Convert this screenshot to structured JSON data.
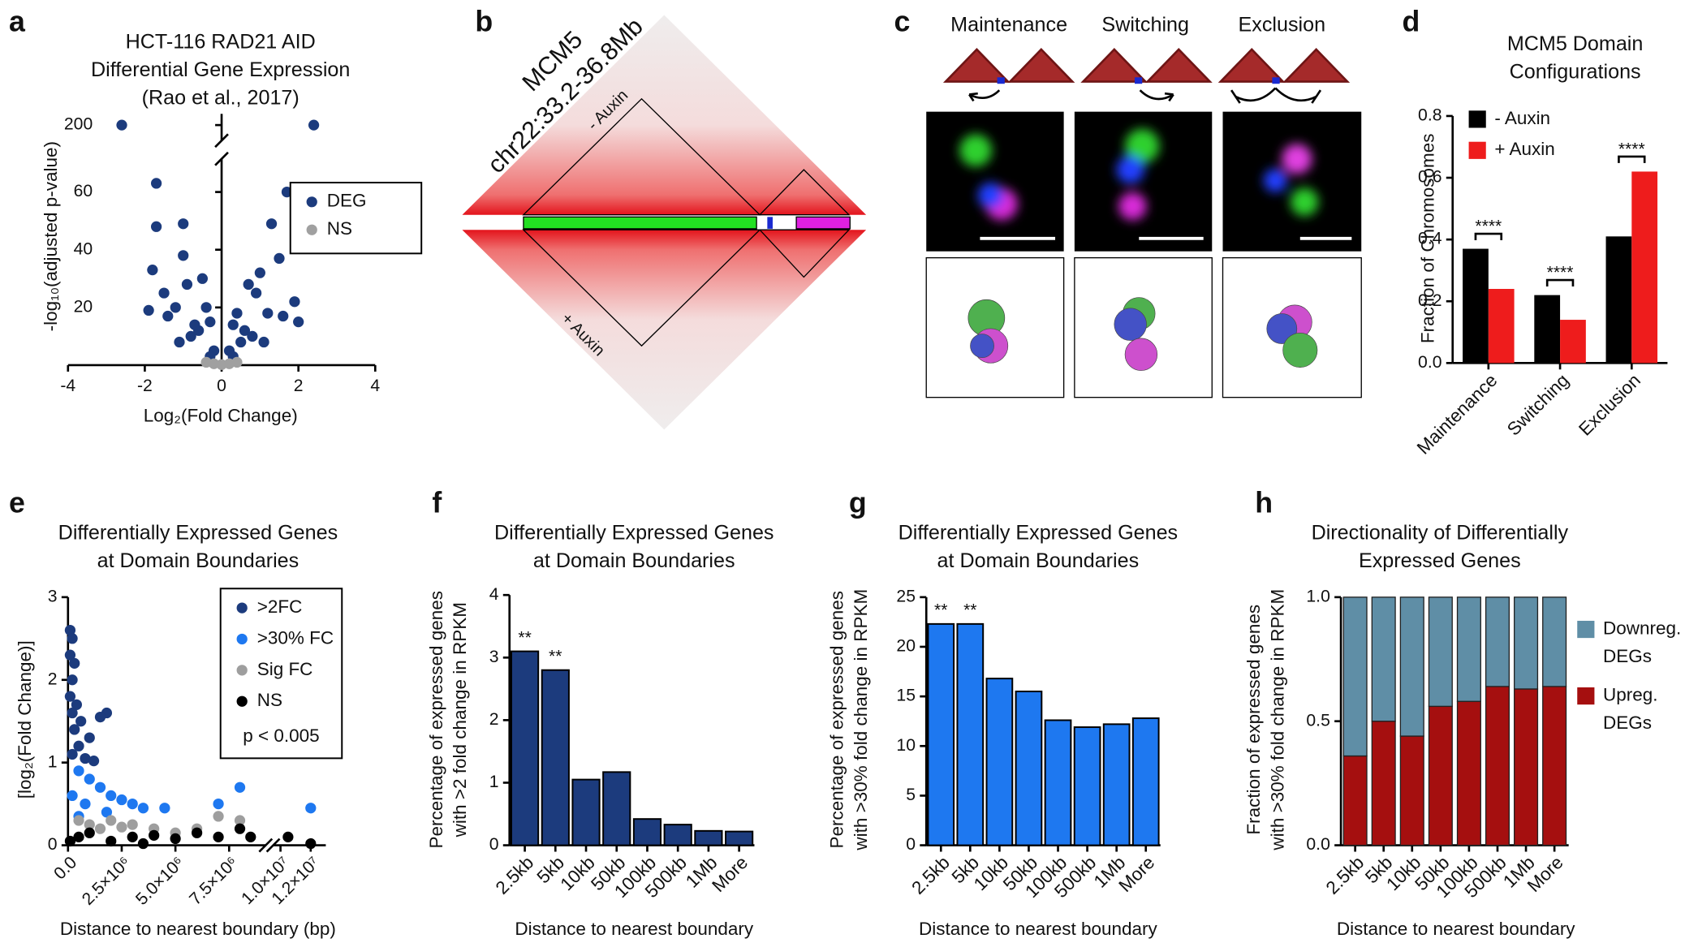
{
  "chart_data": [
    {
      "type": "scatter",
      "panel": "a",
      "title": [
        "HCT-116 RAD21 AID",
        "Differential Gene Expression",
        "(Rao et al., 2017)"
      ],
      "x_label": "Log₂(Fold Change)",
      "y_label": "-log₁₀(adjusted p-value)",
      "xlim": [
        -4,
        4
      ],
      "xticks": [
        -4,
        -2,
        0,
        2,
        4
      ],
      "ylim": [
        0,
        205
      ],
      "y_break": [
        70,
        195
      ],
      "yticks": [
        20,
        40,
        60,
        200
      ],
      "legend": "upper right",
      "series": [
        {
          "name": "DEG",
          "color": "#1c3b7d",
          "x": [
            -2.6,
            2.4,
            -1.7,
            1.7,
            -1.7,
            -1.0,
            1.3,
            -1.8,
            -1.0,
            1.5,
            1.0,
            -0.5,
            0.7,
            -1.5,
            1.9,
            -1.2,
            1.2,
            -0.3,
            0.3,
            -0.8,
            0.8,
            -0.2,
            0.2,
            -1.4,
            1.6,
            2.0,
            -1.9,
            0.5,
            -0.6,
            -0.9,
            0.9,
            -0.4,
            0.4,
            -0.7,
            0.6,
            -1.1,
            1.1,
            -0.3,
            0.3
          ],
          "values": [
            200,
            200,
            63,
            60,
            48,
            49,
            49,
            33,
            38,
            37,
            32,
            30,
            28,
            25,
            22,
            20,
            18,
            15,
            14,
            10,
            10,
            5,
            5,
            17,
            17,
            15,
            19,
            8,
            12,
            28,
            25,
            20,
            18,
            14,
            12,
            8,
            8,
            3,
            3
          ]
        },
        {
          "name": "NS",
          "color": "#a0a0a0",
          "x": [
            -0.4,
            -0.2,
            0,
            0.2,
            0.4
          ],
          "values": [
            1,
            0.5,
            0.2,
            0.5,
            1
          ]
        }
      ]
    },
    {
      "type": "hic-map",
      "panel": "b",
      "title": [
        "MCM5",
        "chr22:33.2-36.8Mb"
      ],
      "labels": [
        "- Auxin",
        "+ Auxin"
      ]
    },
    {
      "type": "microscopy",
      "panel": "c",
      "categories": [
        "Maintenance",
        "Switching",
        "Exclusion"
      ]
    },
    {
      "type": "bar",
      "panel": "d",
      "title": [
        "MCM5 Domain",
        "Configurations"
      ],
      "y_label": "Fraction of Chromosomes",
      "categories": [
        "Maintenance",
        "Switching",
        "Exclusion"
      ],
      "ylim": [
        0,
        0.8
      ],
      "yticks": [
        {
          "value": 0,
          "label": "0.0"
        },
        0.2,
        0.4,
        0.6,
        0.8
      ],
      "legend": "upper left",
      "series": [
        {
          "name": "- Auxin",
          "color": "#000000",
          "values": [
            0.37,
            0.22,
            0.41
          ]
        },
        {
          "name": "+ Auxin",
          "color": "#ee1c1c",
          "values": [
            0.24,
            0.14,
            0.62
          ]
        }
      ],
      "significance": [
        "****",
        "****",
        "****"
      ]
    },
    {
      "type": "scatter",
      "panel": "e",
      "title": [
        "Differentially Expressed Genes",
        "at Domain Boundaries"
      ],
      "x_label": "Distance to nearest boundary (bp)",
      "y_label": "[log₂(Fold Change)]",
      "xlim": [
        0,
        13000000
      ],
      "x_break": [
        9000000,
        9800000
      ],
      "xticks": [
        {
          "value": 0,
          "label": "0.0"
        },
        {
          "value": 2500000,
          "label": "2.5×10⁶"
        },
        {
          "value": 5000000,
          "label": "5.0×10⁶"
        },
        {
          "value": 7500000,
          "label": "7.5×10⁶"
        },
        {
          "value": 10000000,
          "label": "1.0×10⁷"
        },
        {
          "value": 12000000,
          "label": "1.2×10⁷"
        }
      ],
      "ylim": [
        0,
        3
      ],
      "yticks": [
        0,
        1,
        2,
        3
      ],
      "legend": "upper right",
      "note": "p < 0.005",
      "series": [
        {
          "name": ">2FC",
          "color": "#1c3b7d",
          "x": [
            100000,
            200000,
            100000,
            300000,
            200000,
            100000,
            400000,
            200000,
            1800000,
            1500000,
            600000,
            300000,
            1000000,
            500000,
            200000,
            800000,
            1200000
          ],
          "values": [
            2.6,
            2.5,
            2.3,
            2.2,
            2.0,
            1.8,
            1.7,
            1.6,
            1.6,
            1.55,
            1.5,
            1.4,
            1.3,
            1.2,
            1.1,
            1.05,
            1.02
          ]
        },
        {
          "name": ">30% FC",
          "color": "#1e78f0",
          "x": [
            500000,
            1000000,
            1500000,
            2000000,
            2500000,
            3000000,
            3500000,
            4500000,
            7000000,
            8000000,
            12000000,
            200000,
            800000,
            1800000,
            500000
          ],
          "values": [
            0.9,
            0.8,
            0.7,
            0.6,
            0.55,
            0.5,
            0.45,
            0.45,
            0.5,
            0.7,
            0.45,
            0.6,
            0.5,
            0.4,
            0.35
          ]
        },
        {
          "name": "Sig FC",
          "color": "#9e9e9e",
          "x": [
            500000,
            1000000,
            2000000,
            3000000,
            4000000,
            5000000,
            6000000,
            7000000,
            8000000,
            1500000,
            2500000
          ],
          "values": [
            0.3,
            0.25,
            0.3,
            0.25,
            0.2,
            0.15,
            0.2,
            0.35,
            0.3,
            0.2,
            0.22
          ]
        },
        {
          "name": "NS",
          "color": "#000000",
          "x": [
            500000,
            1000000,
            2000000,
            3000000,
            4000000,
            5000000,
            6000000,
            7000000,
            8000000,
            8500000,
            10500000,
            12000000,
            100000,
            3500000
          ],
          "values": [
            0.1,
            0.15,
            0.05,
            0.1,
            0.12,
            0.08,
            0.15,
            0.1,
            0.2,
            0.1,
            0.1,
            0.02,
            0.05,
            0.02
          ]
        }
      ]
    },
    {
      "type": "bar",
      "panel": "f",
      "title": [
        "Differentially Expressed Genes",
        "at Domain Boundaries"
      ],
      "x_label": "Distance to nearest boundary",
      "y_label": [
        "Percentage of expressed genes",
        "with >2 fold change in RPKM"
      ],
      "categories": [
        "2.5kb",
        "5kb",
        "10kb",
        "50kb",
        "100kb",
        "500kb",
        "1Mb",
        "More"
      ],
      "color": "#1c3b7d",
      "values": [
        3.1,
        2.8,
        1.05,
        1.17,
        0.42,
        0.33,
        0.23,
        0.22
      ],
      "ylim": [
        0,
        4
      ],
      "yticks": [
        0,
        1,
        2,
        3,
        4
      ],
      "significance": [
        "**",
        "**",
        null,
        null,
        null,
        null,
        null,
        null
      ]
    },
    {
      "type": "bar",
      "panel": "g",
      "title": [
        "Differentially Expressed Genes",
        "at Domain Boundaries"
      ],
      "x_label": "Distance to nearest boundary",
      "y_label": [
        "Percentage of expressed genes",
        "with >30% fold change in RPKM"
      ],
      "categories": [
        "2.5kb",
        "5kb",
        "10kb",
        "50kb",
        "100kb",
        "500kb",
        "1Mb",
        "More"
      ],
      "color": "#1e78f0",
      "values": [
        22.3,
        22.3,
        16.8,
        15.5,
        12.6,
        11.9,
        12.2,
        12.8
      ],
      "ylim": [
        0,
        25
      ],
      "yticks": [
        0,
        5,
        10,
        15,
        20,
        25
      ],
      "significance": [
        "**",
        "**",
        null,
        null,
        null,
        null,
        null,
        null
      ]
    },
    {
      "type": "bar",
      "panel": "h",
      "stacked": true,
      "title": [
        "Directionality of Differentially",
        "Expressed Genes"
      ],
      "x_label": "Distance to nearest boundary",
      "y_label": [
        "Fraction of expressed genes",
        "with >30% fold change in RPKM"
      ],
      "categories": [
        "2.5kb",
        "5kb",
        "10kb",
        "50kb",
        "100kb",
        "500kb",
        "1Mb",
        "More"
      ],
      "ylim": [
        0,
        1
      ],
      "yticks": [
        {
          "value": 0,
          "label": "0.0"
        },
        0.5,
        {
          "value": 1,
          "label": "1.0"
        }
      ],
      "legend": "right",
      "series": [
        {
          "name": [
            "Upreg.",
            "DEGs"
          ],
          "color": "#a50f0f",
          "values": [
            0.36,
            0.5,
            0.44,
            0.56,
            0.58,
            0.64,
            0.63,
            0.64
          ]
        },
        {
          "name": [
            "Downreg.",
            "DEGs"
          ],
          "color": "#5f8ea6",
          "values": [
            0.64,
            0.5,
            0.56,
            0.44,
            0.42,
            0.36,
            0.37,
            0.36
          ]
        }
      ]
    }
  ]
}
